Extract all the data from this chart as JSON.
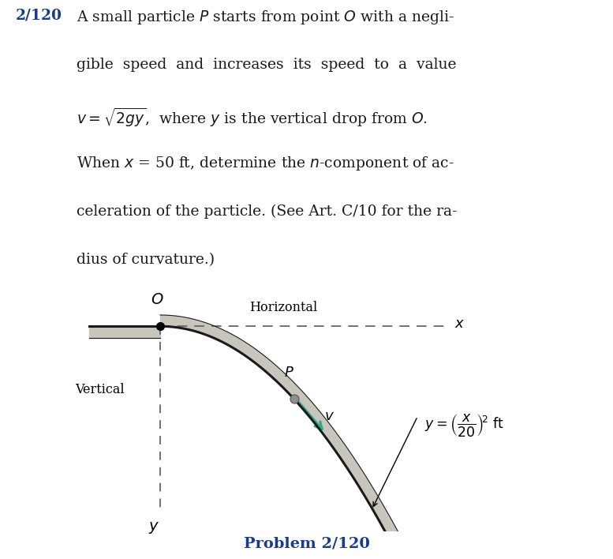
{
  "bg_color": "#ffffff",
  "text_color": "#1a1a1a",
  "blue_color": "#1a3a8c",
  "curve_top_color": "#1a1a1a",
  "curve_fill_light": "#d0cfc8",
  "curve_fill_dark": "#a0a098",
  "dashed_color": "#666666",
  "arrow_color": "#2aaa88",
  "particle_color": "#909090",
  "footer": "Problem 2/120",
  "label_O": "O",
  "label_Horizontal": "Horizontal",
  "label_x": "x",
  "label_P": "P",
  "label_v": "v",
  "label_Vertical": "Vertical",
  "label_y": "y"
}
